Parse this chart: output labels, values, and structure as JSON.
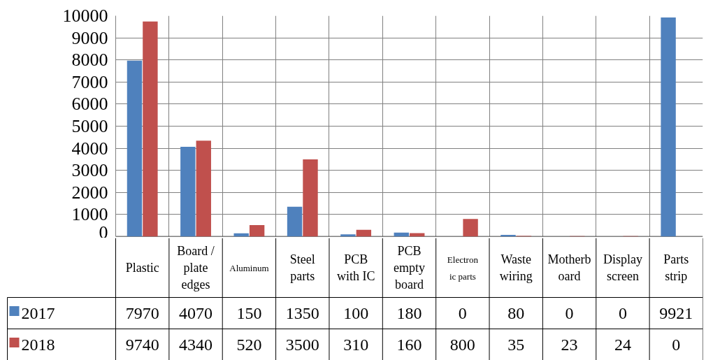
{
  "chart_data": {
    "type": "bar",
    "categories": [
      "Plastic",
      "Board /\nplate\nedges",
      "Aluminum",
      "Steel\nparts",
      "PCB\nwith IC",
      "PCB\nempty\nboard",
      "Electron\nic parts",
      "Waste\nwiring",
      "Motherb\noard",
      "Display\nscreen",
      "Parts\nstrip"
    ],
    "series": [
      {
        "name": "2017",
        "color": "#4f81bd",
        "values": [
          7970,
          4070,
          150,
          1350,
          100,
          180,
          0,
          80,
          0,
          0,
          9921
        ]
      },
      {
        "name": "2018",
        "color": "#c0504d",
        "values": [
          9740,
          4340,
          520,
          3500,
          310,
          160,
          800,
          35,
          23,
          24,
          0
        ]
      }
    ],
    "ylim": [
      0,
      10000
    ],
    "yticks": [
      0,
      1000,
      2000,
      3000,
      4000,
      5000,
      6000,
      7000,
      8000,
      9000,
      10000
    ],
    "grid": true,
    "legend": "bottom left",
    "data_labels": true
  }
}
